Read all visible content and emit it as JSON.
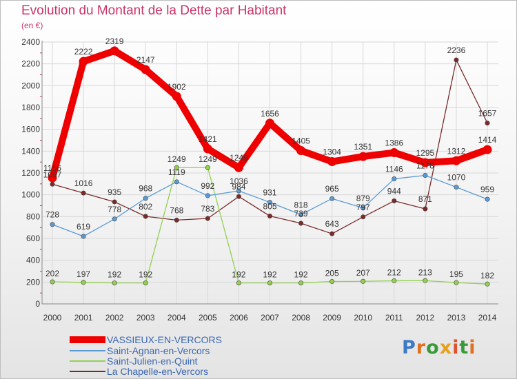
{
  "title": "Evolution du Montant de la Dette par Habitant",
  "unit": "(en €)",
  "logo": {
    "text": "Proxiti",
    "colors": [
      "#3a7ac8",
      "#e07020",
      "#3a9a3a",
      "#e8a020",
      "#e05030",
      "#3a9a3a",
      "#e07020"
    ]
  },
  "chart_data": {
    "type": "line",
    "x": [
      "2000",
      "2001",
      "2002",
      "2003",
      "2004",
      "2005",
      "2006",
      "2007",
      "2008",
      "2009",
      "2010",
      "2011",
      "2012",
      "2013",
      "2014"
    ],
    "ylim": [
      0,
      2400
    ],
    "yticks": [
      "0",
      "200",
      "400",
      "600",
      "800",
      "1000",
      "1200",
      "1400",
      "1600",
      "1800",
      "2000",
      "2200",
      "2400"
    ],
    "grid": true,
    "legend_position": "bottom-left",
    "series": [
      {
        "name": "VASSIEUX-EN-VERCORS",
        "color": "#ee0000",
        "values": [
          1156,
          2222,
          2319,
          2147,
          1902,
          1421,
          1249,
          1656,
          1405,
          1304,
          1351,
          1386,
          1295,
          1312,
          1414
        ],
        "labels": [
          "1156",
          "2222",
          "2319",
          "2147",
          "1902",
          "1421",
          "1249",
          "1656",
          "1405",
          "1304",
          "1351",
          "1386",
          "1295",
          "1312",
          "1414"
        ]
      },
      {
        "name": "Saint-Agnan-en-Vercors",
        "color": "#5b9bd5",
        "values": [
          728,
          619,
          778,
          968,
          1119,
          992,
          1036,
          931,
          818,
          965,
          879,
          1146,
          1178,
          1070,
          959
        ],
        "labels": [
          "728",
          "619",
          "778",
          "968",
          "1119",
          "992",
          "1036",
          "931",
          "818",
          "965",
          "879",
          "1146",
          "1178",
          "1070",
          "959"
        ]
      },
      {
        "name": "Saint-Julien-en-Quint",
        "color": "#92d050",
        "values": [
          202,
          197,
          192,
          192,
          1249,
          1249,
          192,
          192,
          192,
          205,
          207,
          212,
          213,
          195,
          182
        ],
        "labels": [
          "202",
          "197",
          "192",
          "192",
          "1249",
          "1249",
          "192",
          "192",
          "192",
          "205",
          "207",
          "212",
          "213",
          "195",
          "182"
        ]
      },
      {
        "name": "La Chapelle-en-Vercors",
        "color": "#7b2a2a",
        "values": [
          1097,
          1016,
          935,
          802,
          768,
          783,
          984,
          805,
          739,
          643,
          797,
          944,
          871,
          2236,
          1657
        ],
        "labels": [
          "1097",
          "1016",
          "935",
          "802",
          "768",
          "783",
          "984",
          "805",
          "739",
          "643",
          "797",
          "944",
          "871",
          "2236",
          "1657"
        ]
      }
    ]
  }
}
